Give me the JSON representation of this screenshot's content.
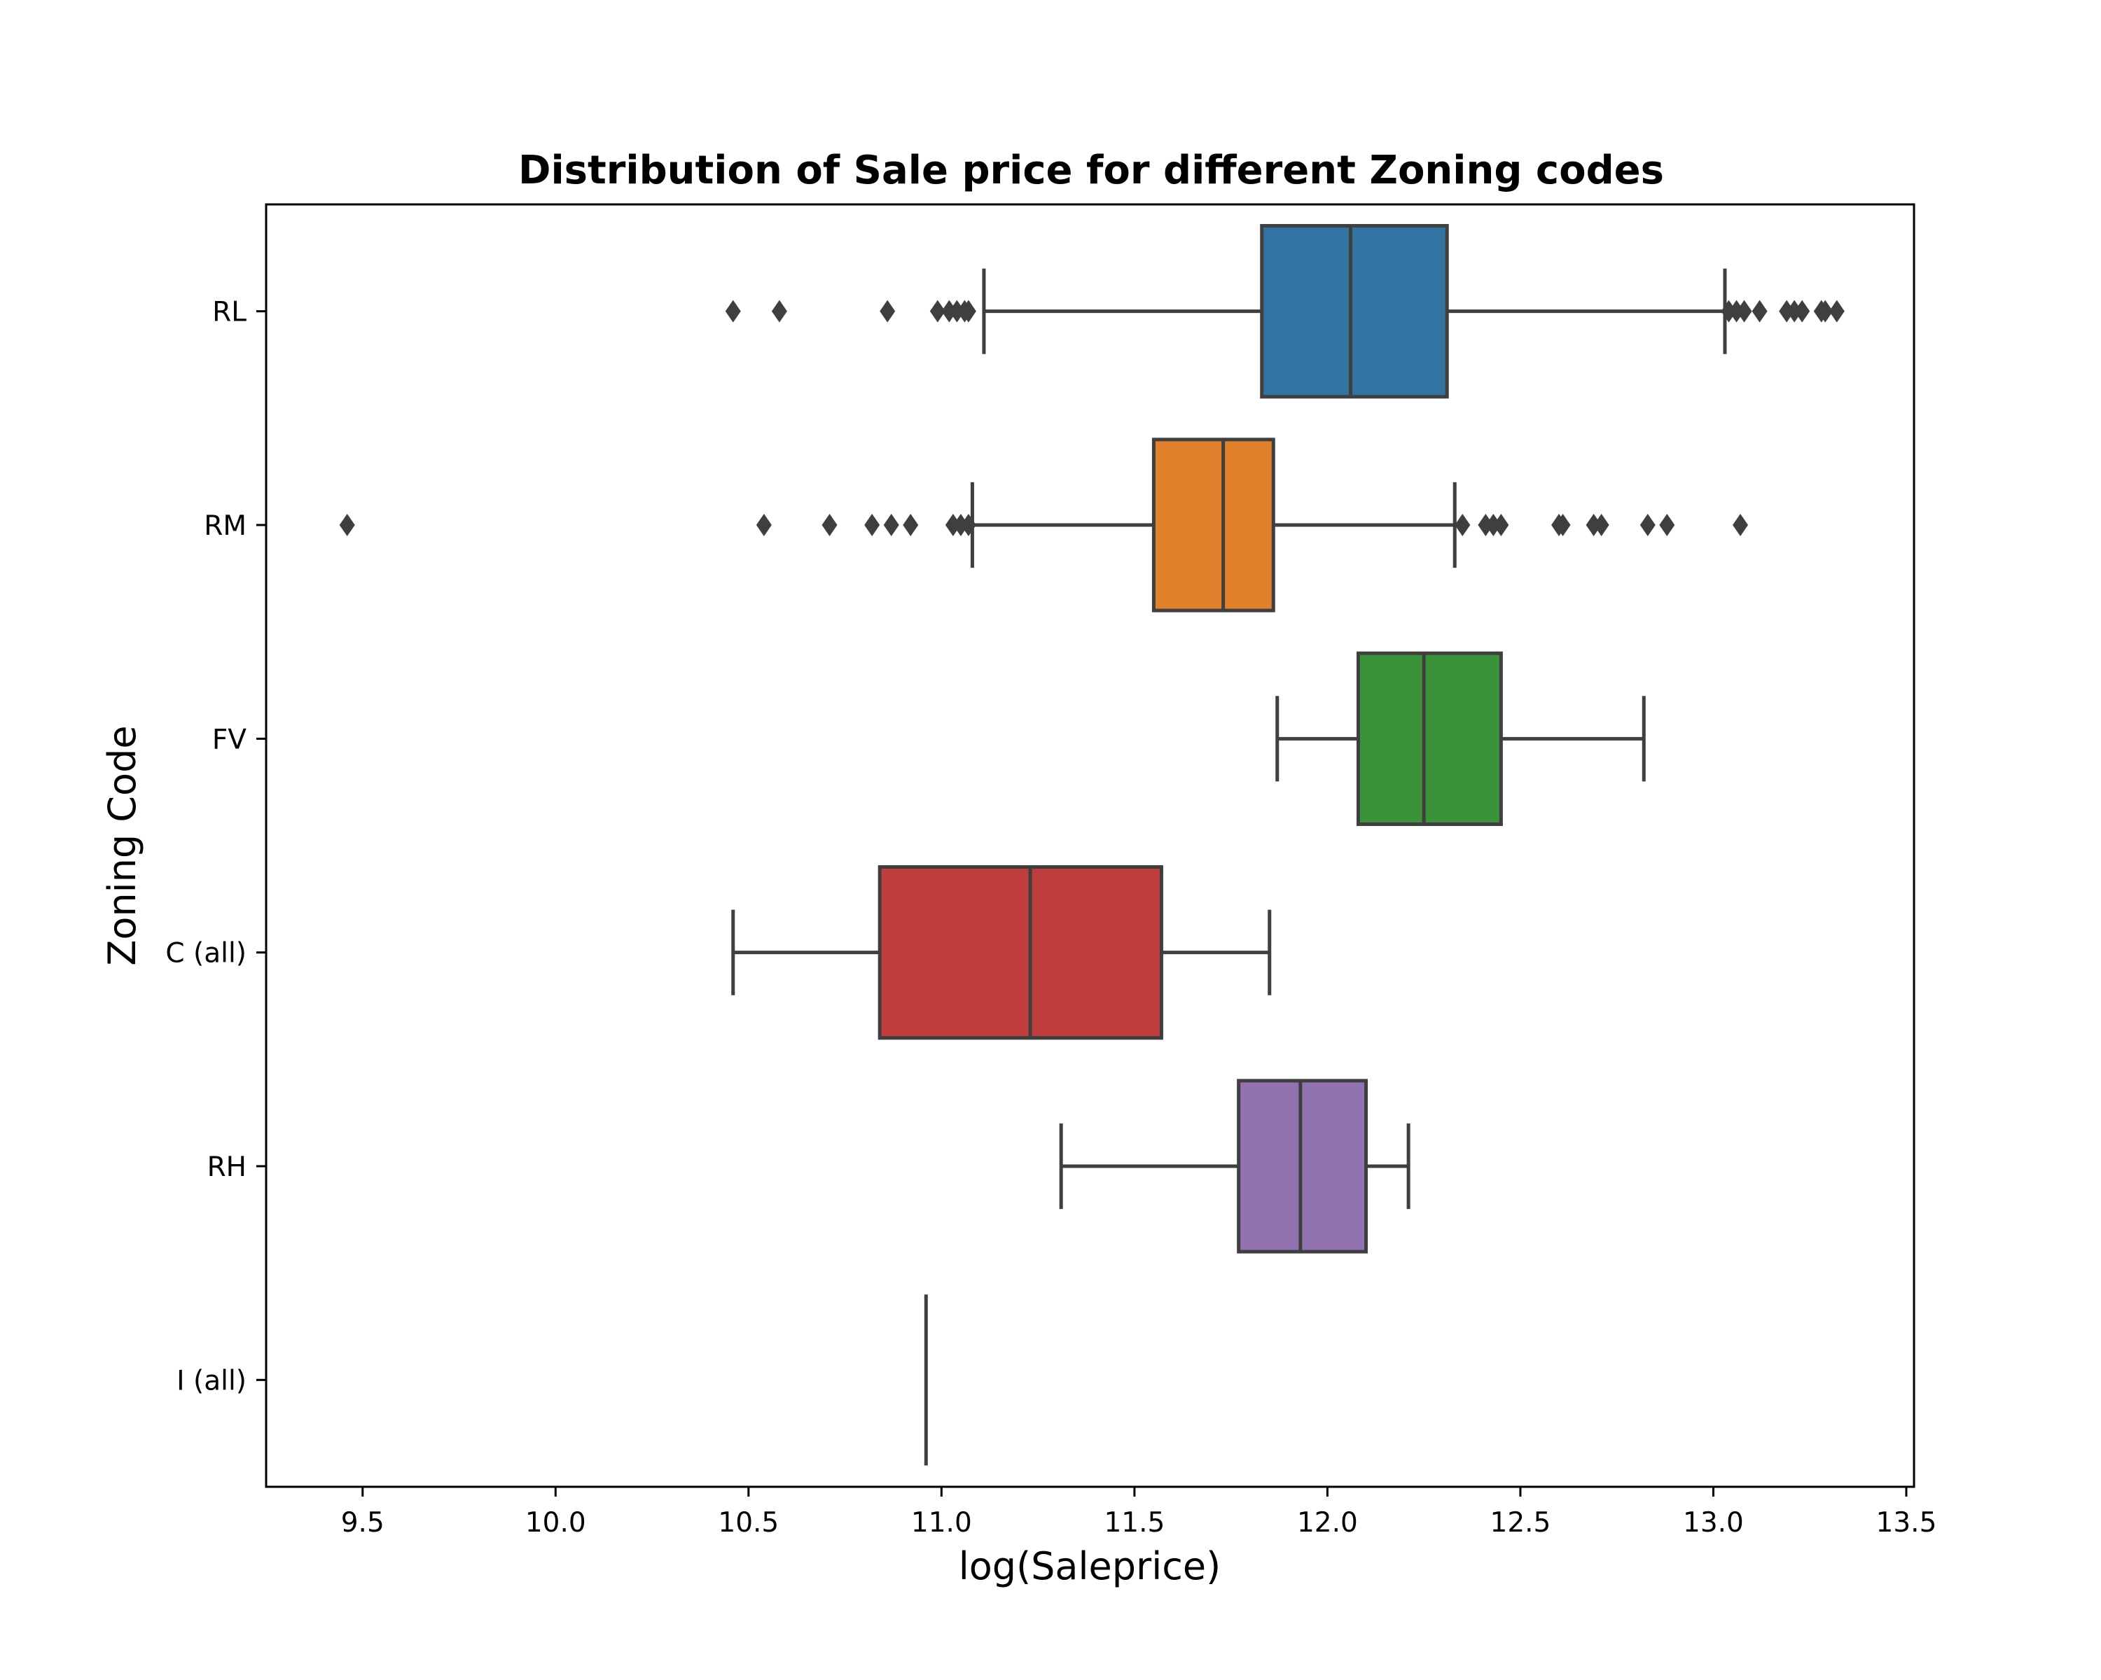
{
  "chart_data": {
    "type": "boxplot",
    "orientation": "horizontal",
    "title": "Distribution of Sale price for different Zoning codes",
    "xlabel": "log(Saleprice)",
    "ylabel": "Zoning Code",
    "xlim": [
      9.25,
      13.52
    ],
    "xticks": [
      "9.5",
      "10.0",
      "10.5",
      "11.0",
      "11.5",
      "12.0",
      "12.5",
      "13.0",
      "13.5"
    ],
    "grid": false,
    "legend": "none",
    "categories": [
      "RL",
      "RM",
      "FV",
      "C (all)",
      "RH",
      "I (all)"
    ],
    "boxes": [
      {
        "category": "RL",
        "color": "#3274a1",
        "whisker_low": 11.11,
        "q1": 11.83,
        "median": 12.06,
        "q3": 12.31,
        "whisker_high": 13.03,
        "fliers": [
          10.46,
          10.58,
          10.86,
          10.99,
          11.02,
          11.04,
          11.06,
          11.07,
          13.04,
          13.06,
          13.08,
          13.12,
          13.19,
          13.21,
          13.23,
          13.28,
          13.29,
          13.32
        ]
      },
      {
        "category": "RM",
        "color": "#e1812c",
        "whisker_low": 11.08,
        "q1": 11.55,
        "median": 11.73,
        "q3": 11.86,
        "whisker_high": 12.33,
        "fliers": [
          9.46,
          10.54,
          10.71,
          10.82,
          10.87,
          10.92,
          11.03,
          11.05,
          11.07,
          12.35,
          12.41,
          12.43,
          12.45,
          12.6,
          12.61,
          12.69,
          12.71,
          12.83,
          12.88,
          13.07
        ]
      },
      {
        "category": "FV",
        "color": "#3a923a",
        "whisker_low": 11.87,
        "q1": 12.08,
        "median": 12.25,
        "q3": 12.45,
        "whisker_high": 12.82,
        "fliers": []
      },
      {
        "category": "C (all)",
        "color": "#c03d3e",
        "whisker_low": 10.46,
        "q1": 10.84,
        "median": 11.23,
        "q3": 11.57,
        "whisker_high": 11.85,
        "fliers": []
      },
      {
        "category": "RH",
        "color": "#9372b2",
        "whisker_low": 11.31,
        "q1": 11.77,
        "median": 11.93,
        "q3": 12.1,
        "whisker_high": 12.21,
        "fliers": []
      },
      {
        "category": "I (all)",
        "color": "#845b53",
        "whisker_low": 10.96,
        "q1": 10.96,
        "median": 10.96,
        "q3": 10.96,
        "whisker_high": 10.96,
        "fliers": []
      }
    ]
  }
}
